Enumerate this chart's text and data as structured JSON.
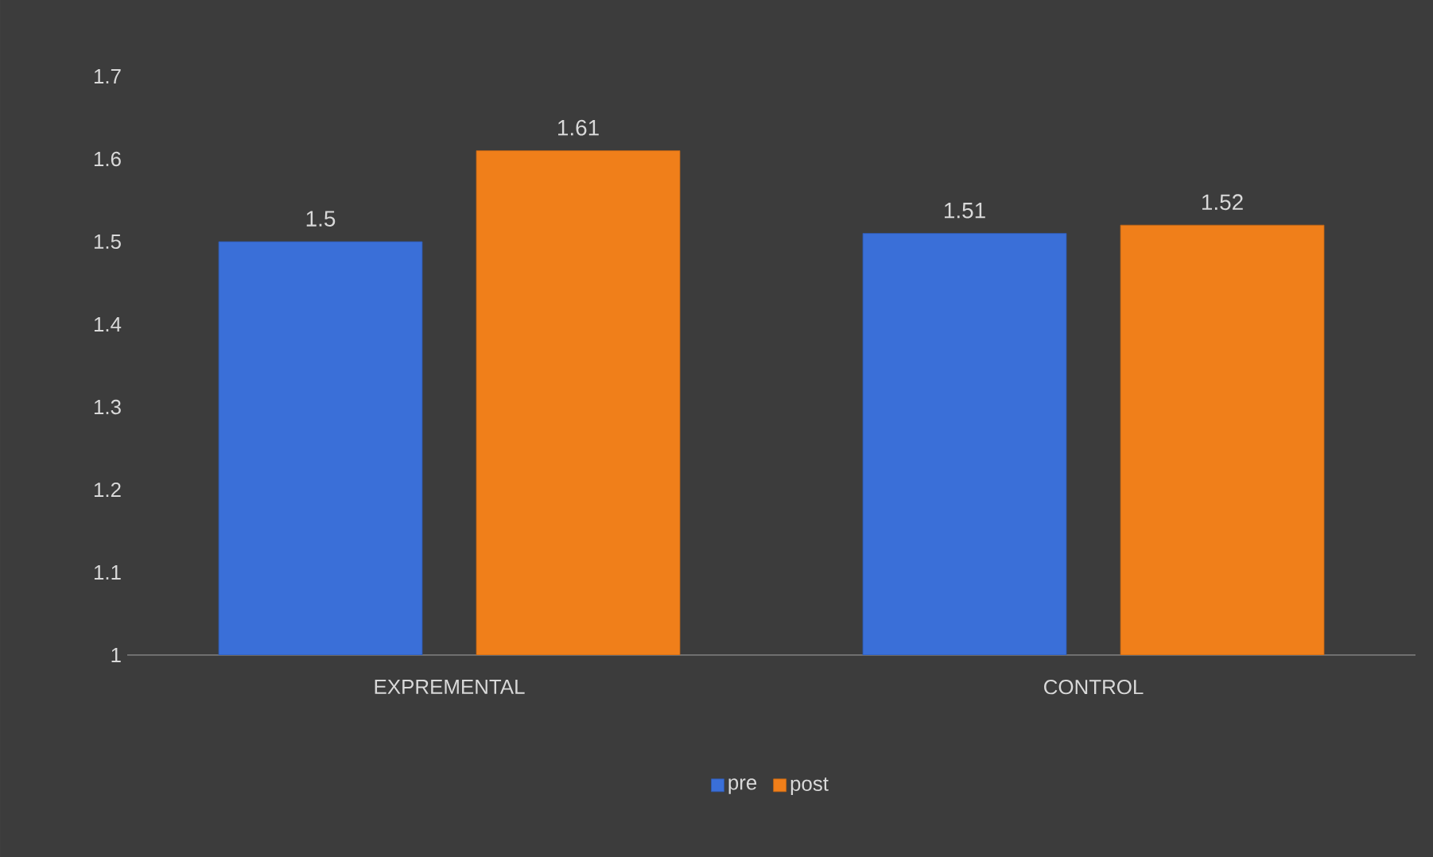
{
  "chart_data": {
    "type": "bar",
    "categories": [
      "EXPREMENTAL",
      "CONTROL"
    ],
    "series": [
      {
        "name": "pre",
        "color": "#3a6fd8",
        "values": [
          1.5,
          1.51
        ]
      },
      {
        "name": "post",
        "color": "#f07f1a",
        "values": [
          1.61,
          1.52
        ]
      }
    ],
    "ylim": [
      1,
      1.7
    ],
    "yticks": [
      1,
      1.1,
      1.2,
      1.3,
      1.4,
      1.5,
      1.6,
      1.7
    ],
    "data_labels": true,
    "grid": false,
    "legend": "bottom"
  }
}
